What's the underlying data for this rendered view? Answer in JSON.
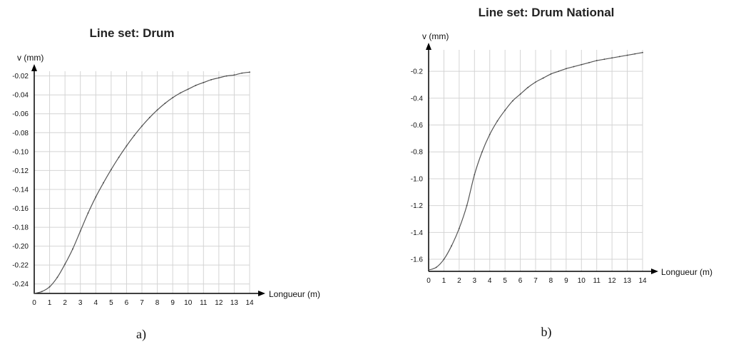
{
  "chart_data": [
    {
      "type": "line",
      "title": "Line set: Drum",
      "ylabel": "v (mm)",
      "xlabel": "Longueur (m)",
      "caption": "a)",
      "xlim": [
        0,
        14
      ],
      "ylim": [
        -0.25,
        -0.015
      ],
      "xticks": [
        0,
        1,
        2,
        3,
        4,
        5,
        6,
        7,
        8,
        9,
        10,
        11,
        12,
        13,
        14
      ],
      "xticklabels": [
        "0",
        "1",
        "2",
        "3",
        "4",
        "5",
        "6",
        "7",
        "8",
        "9",
        "10",
        "11",
        "12",
        "13",
        "14"
      ],
      "yticks": [
        -0.24,
        -0.22,
        -0.2,
        -0.18,
        -0.16,
        -0.14,
        -0.12,
        -0.1,
        -0.08,
        -0.06,
        -0.04,
        -0.02
      ],
      "yticklabels": [
        "-0.24",
        "-0.22",
        "-0.20",
        "-0.18",
        "-0.16",
        "-0.14",
        "-0.12",
        "-0.10",
        "-0.08",
        "-0.06",
        "-0.04",
        "-0.02"
      ],
      "grid": true,
      "series": [
        {
          "x": [
            0,
            0.5,
            1,
            1.5,
            2,
            2.5,
            3,
            3.5,
            4,
            4.5,
            5,
            5.5,
            6,
            6.5,
            7,
            7.5,
            8,
            8.5,
            9,
            9.5,
            10,
            10.5,
            11,
            11.5,
            12,
            12.5,
            13,
            13.5,
            14
          ],
          "y": [
            -0.25,
            -0.248,
            -0.243,
            -0.233,
            -0.219,
            -0.203,
            -0.184,
            -0.165,
            -0.148,
            -0.133,
            -0.119,
            -0.106,
            -0.094,
            -0.083,
            -0.073,
            -0.064,
            -0.056,
            -0.049,
            -0.043,
            -0.038,
            -0.034,
            -0.03,
            -0.027,
            -0.024,
            -0.022,
            -0.02,
            -0.019,
            -0.017,
            -0.016
          ]
        }
      ]
    },
    {
      "type": "line",
      "title": "Line set: Drum National",
      "ylabel": "v (mm)",
      "xlabel": "Longueur (m)",
      "caption": "b)",
      "xlim": [
        0,
        14
      ],
      "ylim": [
        -1.69,
        -0.04
      ],
      "xticks": [
        0,
        1,
        2,
        3,
        4,
        5,
        6,
        7,
        8,
        9,
        10,
        11,
        12,
        13,
        14
      ],
      "xticklabels": [
        "0",
        "1",
        "2",
        "3",
        "4",
        "5",
        "6",
        "7",
        "8",
        "9",
        "10",
        "11",
        "12",
        "13",
        "14"
      ],
      "yticks": [
        -1.6,
        -1.4,
        -1.2,
        -1.0,
        -0.8,
        -0.6,
        -0.4,
        -0.2
      ],
      "yticklabels": [
        "-1.6",
        "-1.4",
        "-1.2",
        "-1.0",
        "-0.8",
        "-0.6",
        "-0.4",
        "-0.2"
      ],
      "grid": true,
      "series": [
        {
          "x": [
            0,
            0.5,
            1,
            1.5,
            2,
            2.5,
            3,
            3.5,
            4,
            4.5,
            5,
            5.5,
            6,
            6.5,
            7,
            7.5,
            8,
            8.5,
            9,
            9.5,
            10,
            10.5,
            11,
            11.5,
            12,
            12.5,
            13,
            13.5,
            14
          ],
          "y": [
            -1.68,
            -1.66,
            -1.6,
            -1.5,
            -1.37,
            -1.2,
            -0.97,
            -0.8,
            -0.67,
            -0.57,
            -0.49,
            -0.42,
            -0.37,
            -0.32,
            -0.28,
            -0.25,
            -0.22,
            -0.2,
            -0.18,
            -0.165,
            -0.15,
            -0.135,
            -0.12,
            -0.11,
            -0.1,
            -0.09,
            -0.08,
            -0.07,
            -0.06
          ]
        }
      ]
    }
  ]
}
